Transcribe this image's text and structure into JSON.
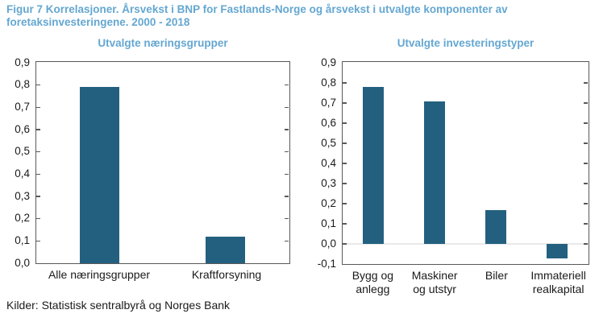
{
  "figure": {
    "title": "Figur 7 Korrelasjoner. Årsvekst i BNP for Fastlands-Norge og årsvekst i utvalgte komponenter av foretaksinvesteringene. 2000 - 2018",
    "source": "Kilder: Statistisk sentralbyrå og Norges Bank"
  },
  "colors": {
    "title_blue": "#64a7d1",
    "bar_fill": "#23607f",
    "axis_gray": "#595959",
    "zero_line": "#e9e9e9",
    "text_black": "#1a1a1a"
  },
  "chart_data": [
    {
      "type": "bar",
      "title": "Utvalgte næringsgrupper",
      "categories": [
        "Alle næringsgrupper",
        "Kraftforsyning"
      ],
      "values": [
        0.79,
        0.12
      ],
      "xlabel": "",
      "ylabel": "",
      "ylim": [
        0.0,
        0.9
      ],
      "ytick_step": 0.1,
      "ytick_labels": [
        "0,9",
        "0,8",
        "0,7",
        "0,6",
        "0,5",
        "0,4",
        "0,3",
        "0,2",
        "0,1",
        "0,0"
      ],
      "grid": false,
      "legend": "none"
    },
    {
      "type": "bar",
      "title": "Utvalgte investeringstyper",
      "categories": [
        "Bygg og\nanlegg",
        "Maskiner\nog utstyr",
        "Biler",
        "Immateriell\nrealkapital"
      ],
      "values": [
        0.78,
        0.71,
        0.17,
        -0.07
      ],
      "xlabel": "",
      "ylabel": "",
      "ylim": [
        -0.1,
        0.9
      ],
      "ytick_step": 0.1,
      "ytick_labels": [
        "0,9",
        "0,8",
        "0,7",
        "0,6",
        "0,5",
        "0,4",
        "0,3",
        "0,2",
        "0,1",
        "0,0",
        "-0,1"
      ],
      "grid": false,
      "zero_line": true,
      "legend": "none"
    }
  ]
}
